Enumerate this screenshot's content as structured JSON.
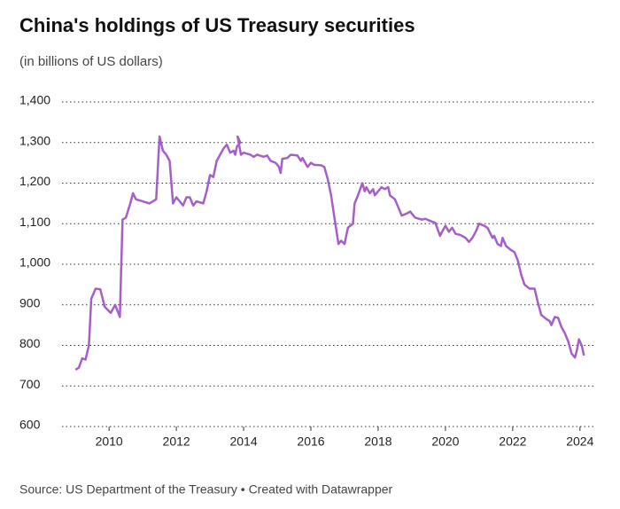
{
  "chart_data": {
    "type": "line",
    "title": "China's holdings of US Treasury securities",
    "subtitle": "(in billions of US dollars)",
    "source": "Source: US Department of the Treasury • Created with Datawrapper",
    "x": [
      2009.0,
      2009.1,
      2009.2,
      2009.3,
      2009.4,
      2009.47,
      2009.6,
      2009.74,
      2009.87,
      2010.05,
      2010.18,
      2010.32,
      2010.4,
      2010.5,
      2010.63,
      2010.71,
      2010.8,
      2011.0,
      2011.2,
      2011.4,
      2011.5,
      2011.6,
      2011.7,
      2011.8,
      2011.9,
      2012.0,
      2012.2,
      2012.3,
      2012.4,
      2012.5,
      2012.6,
      2012.8,
      2012.9,
      2013.0,
      2013.1,
      2013.2,
      2013.4,
      2013.5,
      2013.6,
      2013.7,
      2013.75,
      2013.8,
      2013.9,
      2013.82,
      2013.92,
      2014.0,
      2014.2,
      2014.3,
      2014.4,
      2014.6,
      2014.7,
      2014.8,
      2014.95,
      2015.05,
      2015.1,
      2015.15,
      2015.3,
      2015.4,
      2015.6,
      2015.7,
      2015.75,
      2015.9,
      2016.0,
      2016.1,
      2016.3,
      2016.4,
      2016.5,
      2016.6,
      2016.7,
      2016.82,
      2016.9,
      2017.0,
      2017.1,
      2017.25,
      2017.3,
      2017.4,
      2017.53,
      2017.6,
      2017.65,
      2017.75,
      2017.85,
      2017.9,
      2018.0,
      2018.1,
      2018.2,
      2018.3,
      2018.35,
      2018.5,
      2018.6,
      2018.7,
      2018.85,
      2018.95,
      2019.1,
      2019.3,
      2019.4,
      2019.6,
      2019.7,
      2019.84,
      2019.9,
      2020.0,
      2020.1,
      2020.2,
      2020.3,
      2020.45,
      2020.6,
      2020.7,
      2020.8,
      2020.9,
      2021.0,
      2021.15,
      2021.25,
      2021.4,
      2021.45,
      2021.55,
      2021.65,
      2021.7,
      2021.8,
      2021.95,
      2022.05,
      2022.15,
      2022.25,
      2022.35,
      2022.5,
      2022.65,
      2022.75,
      2022.85,
      2023.0,
      2023.1,
      2023.15,
      2023.25,
      2023.35,
      2023.45,
      2023.55,
      2023.65,
      2023.75,
      2023.85,
      2023.9,
      2023.97,
      2024.05,
      2024.12
    ],
    "series": [
      {
        "color": "#a55fc7",
        "values": [
          740,
          745,
          768,
          765,
          800,
          915,
          940,
          938,
          895,
          880,
          900,
          870,
          1110,
          1115,
          1150,
          1175,
          1160,
          1155,
          1150,
          1160,
          1315,
          1280,
          1270,
          1255,
          1150,
          1165,
          1145,
          1165,
          1165,
          1145,
          1155,
          1150,
          1180,
          1220,
          1215,
          1255,
          1285,
          1295,
          1275,
          1280,
          1270,
          1290,
          1300,
          1315,
          1270,
          1275,
          1270,
          1265,
          1270,
          1265,
          1268,
          1255,
          1250,
          1240,
          1225,
          1260,
          1262,
          1270,
          1268,
          1255,
          1262,
          1240,
          1250,
          1245,
          1244,
          1240,
          1210,
          1170,
          1115,
          1050,
          1058,
          1050,
          1090,
          1100,
          1150,
          1170,
          1200,
          1180,
          1190,
          1175,
          1185,
          1170,
          1180,
          1190,
          1185,
          1190,
          1170,
          1160,
          1140,
          1120,
          1125,
          1130,
          1115,
          1110,
          1112,
          1105,
          1102,
          1070,
          1080,
          1095,
          1080,
          1090,
          1075,
          1072,
          1065,
          1055,
          1065,
          1080,
          1100,
          1095,
          1090,
          1065,
          1070,
          1050,
          1045,
          1065,
          1045,
          1035,
          1030,
          1010,
          975,
          950,
          940,
          940,
          905,
          875,
          865,
          860,
          850,
          870,
          868,
          845,
          830,
          810,
          780,
          770,
          785,
          815,
          800,
          775
        ]
      }
    ],
    "xlim": [
      2008.6,
      2024.4
    ],
    "xticks": [
      2010,
      2012,
      2014,
      2016,
      2018,
      2020,
      2022,
      2024
    ],
    "ylim": [
      600,
      1400
    ],
    "yticks": [
      600,
      700,
      800,
      900,
      {
        "value": 1000,
        "label": "1,000"
      },
      {
        "value": 1100,
        "label": "1,100"
      },
      {
        "value": 1200,
        "label": "1,200"
      },
      {
        "value": 1300,
        "label": "1,300"
      },
      {
        "value": 1400,
        "label": "1,400"
      }
    ],
    "grid": true
  }
}
